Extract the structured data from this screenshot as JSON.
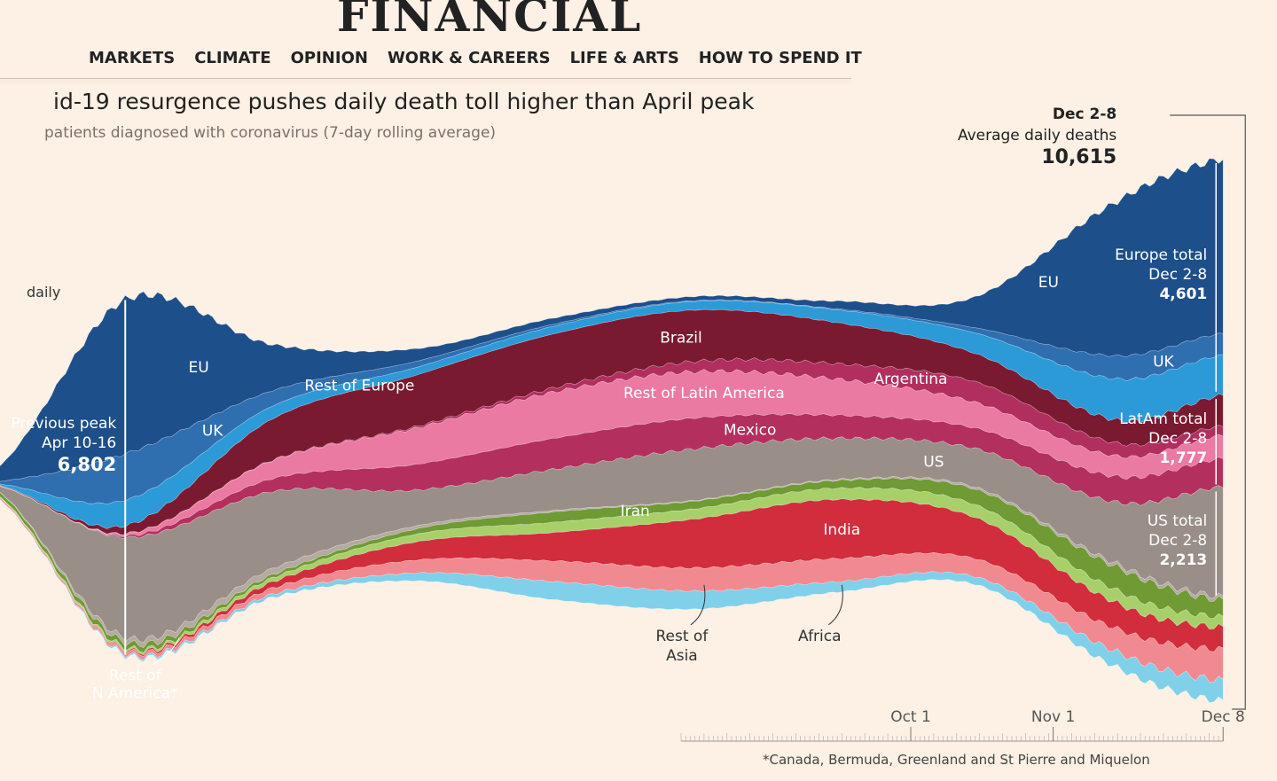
{
  "masthead": "FINANCIAL",
  "nav": [
    "MARKETS",
    "CLIMATE",
    "OPINION",
    "WORK & CAREERS",
    "LIFE & ARTS",
    "HOW TO SPEND IT"
  ],
  "chart_data": {
    "type": "area",
    "stacking": "streamgraph",
    "title": "id-19 resurgence pushes daily death toll higher than April peak",
    "subtitle": "patients diagnosed with coronavirus (7-day rolling average)",
    "ylabel": "daily",
    "x": [
      "2020-03-15",
      "2020-04-13",
      "2020-05-15",
      "2020-06-15",
      "2020-07-15",
      "2020-08-15",
      "2020-09-15",
      "2020-10-15",
      "2020-11-15",
      "2020-12-08"
    ],
    "x_ticks": [
      "Oct 1",
      "Nov 1",
      "Dec 8"
    ],
    "series": [
      {
        "name": "EU",
        "color": "#1d4f8a",
        "values": [
          200,
          3000,
          900,
          250,
          120,
          80,
          150,
          600,
          3000,
          3400
        ]
      },
      {
        "name": "UK",
        "color": "#2f6fb0",
        "values": [
          20,
          900,
          300,
          120,
          40,
          15,
          20,
          100,
          450,
          420
        ]
      },
      {
        "name": "Rest of Europe",
        "color": "#2d9ad8",
        "values": [
          10,
          500,
          250,
          150,
          150,
          170,
          250,
          400,
          800,
          780
        ]
      },
      {
        "name": "Brazil",
        "color": "#7a1a30",
        "values": [
          5,
          150,
          800,
          1000,
          1050,
          1000,
          800,
          550,
          450,
          600
        ]
      },
      {
        "name": "Argentina",
        "color": "#b02f5e",
        "values": [
          0,
          5,
          10,
          30,
          80,
          200,
          300,
          400,
          250,
          180
        ]
      },
      {
        "name": "Rest of Latin America",
        "color": "#ea7aa2",
        "values": [
          5,
          40,
          350,
          700,
          900,
          900,
          700,
          500,
          400,
          450
        ]
      },
      {
        "name": "Mexico",
        "color": "#b3305e",
        "values": [
          0,
          30,
          250,
          500,
          600,
          600,
          450,
          400,
          500,
          550
        ]
      },
      {
        "name": "US",
        "color": "#998f88",
        "values": [
          50,
          1950,
          1500,
          700,
          800,
          1000,
          800,
          750,
          1200,
          2150
        ]
      },
      {
        "name": "Rest of N America*",
        "color": "#b5aaa1",
        "values": [
          2,
          90,
          120,
          60,
          30,
          15,
          20,
          40,
          60,
          63
        ]
      },
      {
        "name": "Iran",
        "color": "#6f9a34",
        "values": [
          80,
          100,
          60,
          100,
          200,
          150,
          150,
          300,
          450,
          330
        ]
      },
      {
        "name": "",
        "color": "#a8d06a",
        "values": [
          20,
          40,
          80,
          150,
          200,
          200,
          220,
          250,
          250,
          200
        ]
      },
      {
        "name": "India",
        "color": "#d22d3c",
        "values": [
          0,
          20,
          120,
          350,
          550,
          950,
          1150,
          800,
          500,
          430
        ]
      },
      {
        "name": "Rest of Asia",
        "color": "#f08a90",
        "values": [
          30,
          60,
          120,
          250,
          400,
          450,
          450,
          350,
          450,
          600
        ]
      },
      {
        "name": "Africa",
        "color": "#80d0ea",
        "values": [
          2,
          30,
          60,
          150,
          350,
          350,
          200,
          150,
          300,
          400
        ]
      }
    ],
    "annotations": {
      "previous_peak": {
        "label": "Previous peak",
        "period": "Apr 10-16",
        "value": "6,802"
      },
      "current": {
        "period": "Dec 2-8",
        "label": "Average daily deaths",
        "value": "10,615"
      },
      "europe_total": {
        "label": "Europe total",
        "period": "Dec 2-8",
        "value": "4,601"
      },
      "latam_total": {
        "label": "LatAm total",
        "period": "Dec 2-8",
        "value": "1,777"
      },
      "us_total": {
        "label": "US total",
        "period": "Dec 2-8",
        "value": "2,213"
      },
      "rest_n_america": [
        "Rest of",
        "N America*"
      ],
      "rest_of_asia": [
        "Rest of",
        "Asia"
      ]
    },
    "footnote": "*Canada, Bermuda, Greenland and St Pierre and Miquelon",
    "grid": false,
    "legend": "none"
  }
}
